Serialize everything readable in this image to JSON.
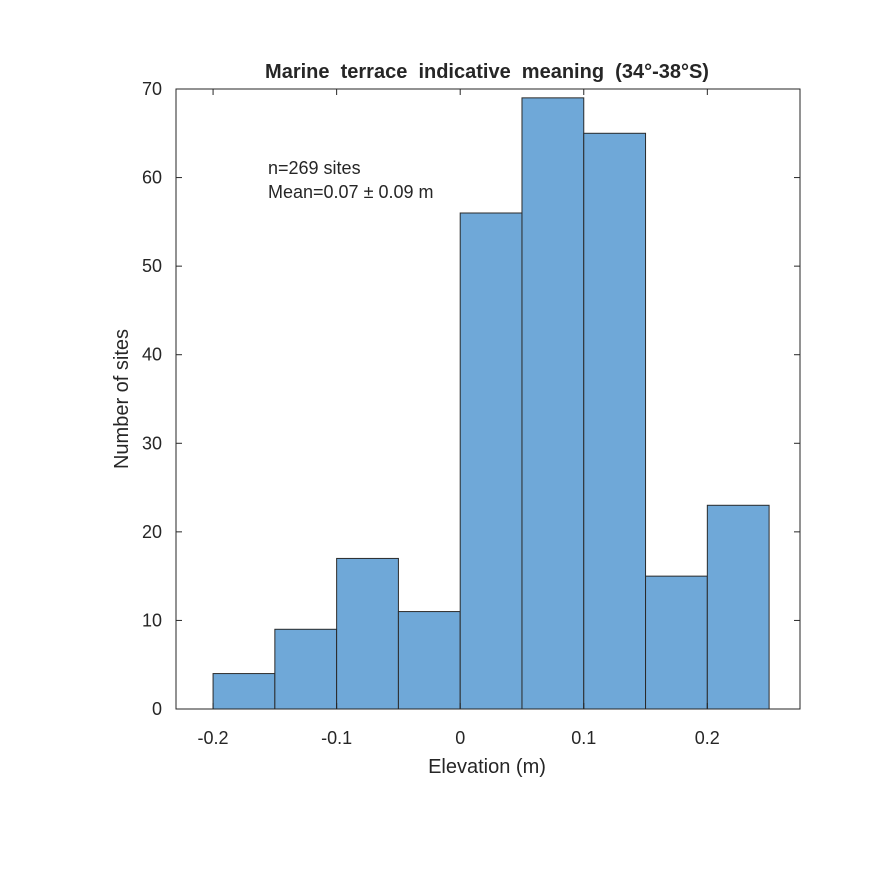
{
  "chart_data": {
    "type": "bar",
    "subtype": "histogram",
    "title": "Marine  terrace  indicative  meaning  (34°-38°S)",
    "xlabel": "Elevation (m)",
    "ylabel": "Number of sites",
    "bin_edges": [
      -0.2,
      -0.15,
      -0.1,
      -0.05,
      0.0,
      0.05,
      0.1,
      0.15,
      0.2,
      0.25
    ],
    "values": [
      4,
      9,
      17,
      11,
      56,
      69,
      65,
      15,
      23
    ],
    "xlim": [
      -0.23,
      0.275
    ],
    "ylim": [
      0,
      70
    ],
    "xticks": [
      -0.2,
      -0.1,
      0,
      0.1,
      0.2
    ],
    "xtick_labels": [
      "-0.2",
      "-0.1",
      "0",
      "0.1",
      "0.2"
    ],
    "yticks": [
      0,
      10,
      20,
      30,
      40,
      50,
      60,
      70
    ],
    "ytick_labels": [
      "0",
      "10",
      "20",
      "30",
      "40",
      "50",
      "60",
      "70"
    ],
    "annotations": [
      "n=269 sites",
      "Mean=0.07 ± 0.09 m"
    ],
    "bar_color": "#6FA8D8",
    "edge_color": "#2a2a2a",
    "grid": false
  }
}
